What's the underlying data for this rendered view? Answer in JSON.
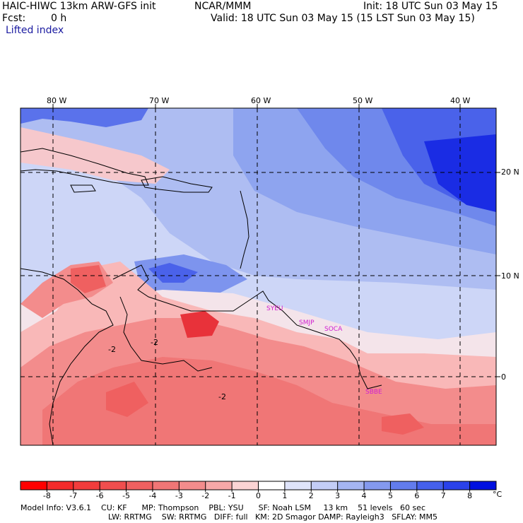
{
  "header": {
    "model": "HAIC-HIWC 13km ARW-GFS init",
    "org": "NCAR/MMM",
    "init": "Init: 18 UTC Sun 03 May 15",
    "fcst_label": "Fcst:",
    "fcst_value": "0 h",
    "valid": "Valid: 18 UTC Sun 03 May 15 (15 LST Sun 03 May 15)",
    "field": "Lifted index"
  },
  "map": {
    "lon_labels": [
      "80 W",
      "70 W",
      "60 W",
      "50 W",
      "40 W"
    ],
    "lat_labels": [
      "20 N",
      "10 N",
      "0"
    ],
    "contour_labels": [
      "-2",
      "-2",
      "-2"
    ],
    "station_labels": [
      "SYEU",
      "SMJP",
      "SOCA",
      "SBBE"
    ],
    "colors": {
      "neg_deep": "#e8323a",
      "neg_mid": "#f27373",
      "neg_light": "#f9b8b8",
      "pos_light": "#d2daf7",
      "pos_mid": "#8ea4ef",
      "pos_deep": "#3a4de6",
      "pos_max": "#0010e0",
      "station": "#d020d0"
    }
  },
  "colorbar": {
    "ticks": [
      "-8",
      "-7",
      "-6",
      "-5",
      "-4",
      "-3",
      "-2",
      "-1",
      "0",
      "1",
      "2",
      "3",
      "4",
      "5",
      "6",
      "7",
      "8"
    ],
    "unit": "°C",
    "colors": [
      "#ff0000",
      "#f42a2a",
      "#f23c3c",
      "#f04e4e",
      "#ef6060",
      "#f07676",
      "#f38c8c",
      "#f6a8a8",
      "#fbd4d4",
      "#ffffff",
      "#dfe4fa",
      "#c3cdf6",
      "#a5b5f2",
      "#8499ee",
      "#627ced",
      "#4560ec",
      "#2a42ea",
      "#0010e0"
    ]
  },
  "footer": {
    "line1": "Model Info: V3.6.1    CU: KF      MP: Thompson    PBL: YSU      SF: Noah LSM     13 km    51 levels   60 sec",
    "line2": "LW: RRTMG    SW: RRTMG   DIFF: full   KM: 2D Smagor DAMP: Rayleigh3   SFLAY: MM5"
  }
}
